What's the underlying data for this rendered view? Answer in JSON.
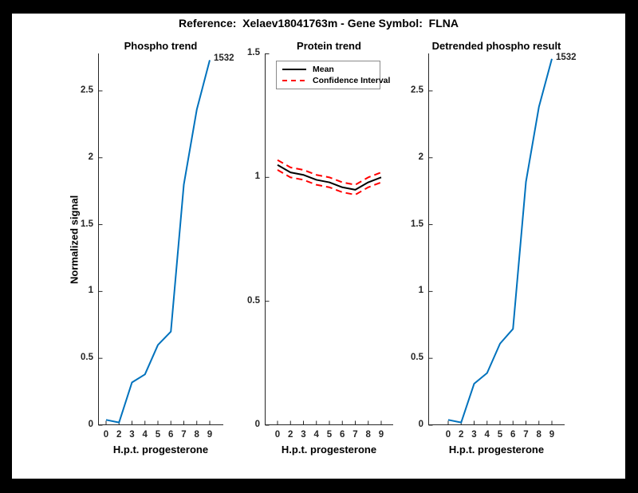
{
  "window": {
    "bg": "#000000",
    "figure_bg": "#ffffff"
  },
  "header": {
    "title": "Reference:  Xelaev18041763m - Gene Symbol:  FLNA"
  },
  "colors": {
    "line_blue": "#0072BD",
    "mean_black": "#000000",
    "ci_red": "#ff0000",
    "axis": "#262626"
  },
  "legend": {
    "items": [
      {
        "label": "Mean"
      },
      {
        "label": "Confidence Interval"
      }
    ]
  },
  "chart_data": [
    {
      "type": "line",
      "title": "Phospho trend",
      "xlabel": "H.p.t. progesterone",
      "ylabel": "Normalized signal",
      "categories": [
        "0",
        "2",
        "3",
        "4",
        "5",
        "6",
        "7",
        "8",
        "9"
      ],
      "yticks": [
        0,
        0.5,
        1,
        1.5,
        2,
        2.5
      ],
      "ylim": [
        0,
        2.78
      ],
      "annotation": "1532",
      "grid": false,
      "series": [
        {
          "name": "Phospho signal",
          "color": "#0072BD",
          "dash": null,
          "values": [
            0.04,
            0.02,
            0.32,
            0.38,
            0.6,
            0.7,
            1.8,
            2.36,
            2.73
          ]
        }
      ]
    },
    {
      "type": "line",
      "title": "Protein trend",
      "xlabel": "H.p.t. progesterone",
      "categories": [
        "0",
        "2",
        "3",
        "4",
        "5",
        "6",
        "7",
        "8",
        "9"
      ],
      "yticks": [
        0,
        0.5,
        1,
        1.5
      ],
      "ylim": [
        0,
        1.5
      ],
      "grid": false,
      "legend_position": "top-left",
      "series": [
        {
          "name": "Mean",
          "color": "#000000",
          "dash": null,
          "values": [
            1.05,
            1.02,
            1.01,
            0.99,
            0.98,
            0.96,
            0.95,
            0.98,
            1.0
          ]
        },
        {
          "name": "Confidence Interval upper",
          "color": "#ff0000",
          "dash": "8 5",
          "values": [
            1.07,
            1.04,
            1.03,
            1.01,
            1.0,
            0.98,
            0.97,
            1.0,
            1.02
          ]
        },
        {
          "name": "Confidence Interval lower",
          "color": "#ff0000",
          "dash": "8 5",
          "values": [
            1.03,
            1.0,
            0.99,
            0.97,
            0.96,
            0.94,
            0.93,
            0.96,
            0.98
          ]
        }
      ]
    },
    {
      "type": "line",
      "title": "Detrended phospho result",
      "xlabel": "H.p.t. progesterone",
      "categories": [
        "0",
        "2",
        "3",
        "4",
        "5",
        "6",
        "7",
        "8",
        "9"
      ],
      "yticks": [
        0,
        0.5,
        1,
        1.5,
        2,
        2.5
      ],
      "ylim": [
        0,
        2.78
      ],
      "annotation": "1532",
      "grid": false,
      "series": [
        {
          "name": "Detrended phospho signal",
          "color": "#0072BD",
          "dash": null,
          "values": [
            0.04,
            0.02,
            0.31,
            0.39,
            0.61,
            0.72,
            1.82,
            2.38,
            2.74
          ]
        }
      ]
    }
  ]
}
